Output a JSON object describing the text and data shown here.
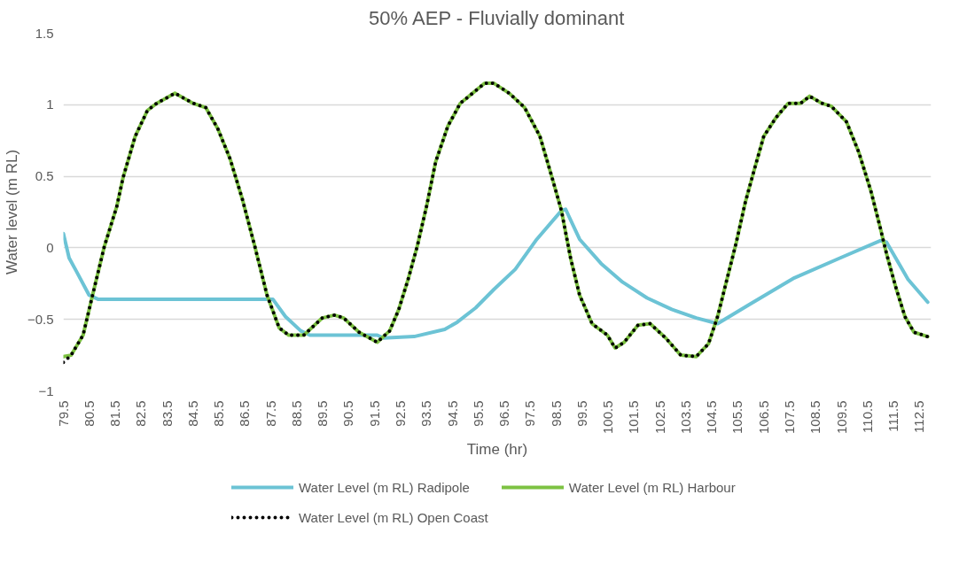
{
  "chart_data": {
    "type": "line",
    "title": "50% AEP - Fluvially dominant",
    "xlabel": "Time (hr)",
    "ylabel": "Water level (m RL)",
    "xlim": [
      79.5,
      112.95
    ],
    "ylim": [
      -1,
      1.5
    ],
    "xticks": [
      79.5,
      80.5,
      81.5,
      82.5,
      83.5,
      84.5,
      85.5,
      86.5,
      87.5,
      88.5,
      89.5,
      90.5,
      91.5,
      92.5,
      93.5,
      94.5,
      95.5,
      96.5,
      97.5,
      98.5,
      99.5,
      100.5,
      101.5,
      102.5,
      103.5,
      104.5,
      105.5,
      106.5,
      107.5,
      108.5,
      109.5,
      110.5,
      111.5,
      112.5
    ],
    "yticks": [
      -1,
      -0.5,
      0,
      0.5,
      1,
      1.5
    ],
    "grid": "y",
    "legend": "bottom",
    "x": [
      79.5,
      79.8,
      80.26,
      80.6,
      81.08,
      81.56,
      81.8,
      82.27,
      82.74,
      83.1,
      83.8,
      84.5,
      84.99,
      85.46,
      85.93,
      86.4,
      86.88,
      87.35,
      87.82,
      88.18,
      88.77,
      89.48,
      89.95,
      90.3,
      90.9,
      91.6,
      92.08,
      92.43,
      92.79,
      93.14,
      93.5,
      93.85,
      94.32,
      94.8,
      95.27,
      95.74,
      96.1,
      96.69,
      97.28,
      97.87,
      98.34,
      98.7,
      99.05,
      99.4,
      99.88,
      100.47,
      100.77,
      101.12,
      101.65,
      102.12,
      102.72,
      103.3,
      103.9,
      104.37,
      104.72,
      105.08,
      105.43,
      105.79,
      106.14,
      106.5,
      106.97,
      107.44,
      107.92,
      108.27,
      108.74,
      109.1,
      109.69,
      110.16,
      110.64,
      110.99,
      111.23,
      111.58,
      111.94,
      112.29,
      112.82
    ],
    "series": [
      {
        "name": "Water Level (m RL) Radipole",
        "color": "#6cc3d5",
        "line_style": "solid",
        "x": [
          79.5,
          79.72,
          80.02,
          80.49,
          80.85,
          87.58,
          88.06,
          88.65,
          89.0,
          91.6,
          91.84,
          93.02,
          94.2,
          94.68,
          95.39,
          96.1,
          96.92,
          97.75,
          98.7,
          98.86,
          99.4,
          100.23,
          101.06,
          102.0,
          102.95,
          103.9,
          104.72,
          105.91,
          107.68,
          109.45,
          110.99,
          111.23,
          112.06,
          112.82
        ],
        "values": [
          0.1,
          -0.07,
          -0.17,
          -0.33,
          -0.36,
          -0.36,
          -0.48,
          -0.58,
          -0.61,
          -0.61,
          -0.63,
          -0.62,
          -0.57,
          -0.52,
          -0.42,
          -0.29,
          -0.15,
          0.06,
          0.26,
          0.27,
          0.06,
          -0.11,
          -0.24,
          -0.35,
          -0.43,
          -0.49,
          -0.53,
          -0.4,
          -0.21,
          -0.07,
          0.05,
          0.04,
          -0.22,
          -0.38
        ]
      },
      {
        "name": "Water Level (m RL) Harbour",
        "color": "#7dc242",
        "line_style": "solid",
        "values": [
          -0.76,
          -0.75,
          -0.61,
          -0.35,
          0.01,
          0.29,
          0.49,
          0.78,
          0.96,
          1.01,
          1.08,
          1.01,
          0.98,
          0.83,
          0.62,
          0.34,
          0.01,
          -0.33,
          -0.56,
          -0.61,
          -0.61,
          -0.49,
          -0.47,
          -0.49,
          -0.59,
          -0.66,
          -0.58,
          -0.43,
          -0.22,
          0.01,
          0.29,
          0.6,
          0.85,
          1.01,
          1.08,
          1.15,
          1.15,
          1.08,
          0.98,
          0.78,
          0.49,
          0.26,
          -0.07,
          -0.33,
          -0.53,
          -0.61,
          -0.7,
          -0.66,
          -0.54,
          -0.53,
          -0.63,
          -0.75,
          -0.76,
          -0.67,
          -0.48,
          -0.22,
          0.03,
          0.32,
          0.55,
          0.78,
          0.91,
          1.01,
          1.01,
          1.06,
          1.01,
          0.99,
          0.88,
          0.67,
          0.39,
          0.14,
          -0.04,
          -0.27,
          -0.48,
          -0.59,
          -0.62
        ]
      },
      {
        "name": "Water Level (m RL) Open Coast",
        "color": "#000000",
        "line_style": "dotted",
        "values": [
          -0.8,
          -0.75,
          -0.61,
          -0.35,
          0.01,
          0.29,
          0.49,
          0.78,
          0.96,
          1.01,
          1.08,
          1.01,
          0.98,
          0.83,
          0.62,
          0.34,
          0.01,
          -0.33,
          -0.56,
          -0.61,
          -0.61,
          -0.49,
          -0.47,
          -0.49,
          -0.59,
          -0.66,
          -0.58,
          -0.43,
          -0.22,
          0.01,
          0.29,
          0.6,
          0.85,
          1.01,
          1.08,
          1.15,
          1.15,
          1.08,
          0.98,
          0.78,
          0.49,
          0.26,
          -0.07,
          -0.33,
          -0.53,
          -0.61,
          -0.7,
          -0.66,
          -0.54,
          -0.53,
          -0.63,
          -0.75,
          -0.76,
          -0.67,
          -0.48,
          -0.22,
          0.03,
          0.32,
          0.55,
          0.78,
          0.91,
          1.01,
          1.01,
          1.06,
          1.01,
          0.99,
          0.88,
          0.67,
          0.39,
          0.14,
          -0.04,
          -0.27,
          -0.48,
          -0.59,
          -0.62
        ]
      }
    ]
  }
}
